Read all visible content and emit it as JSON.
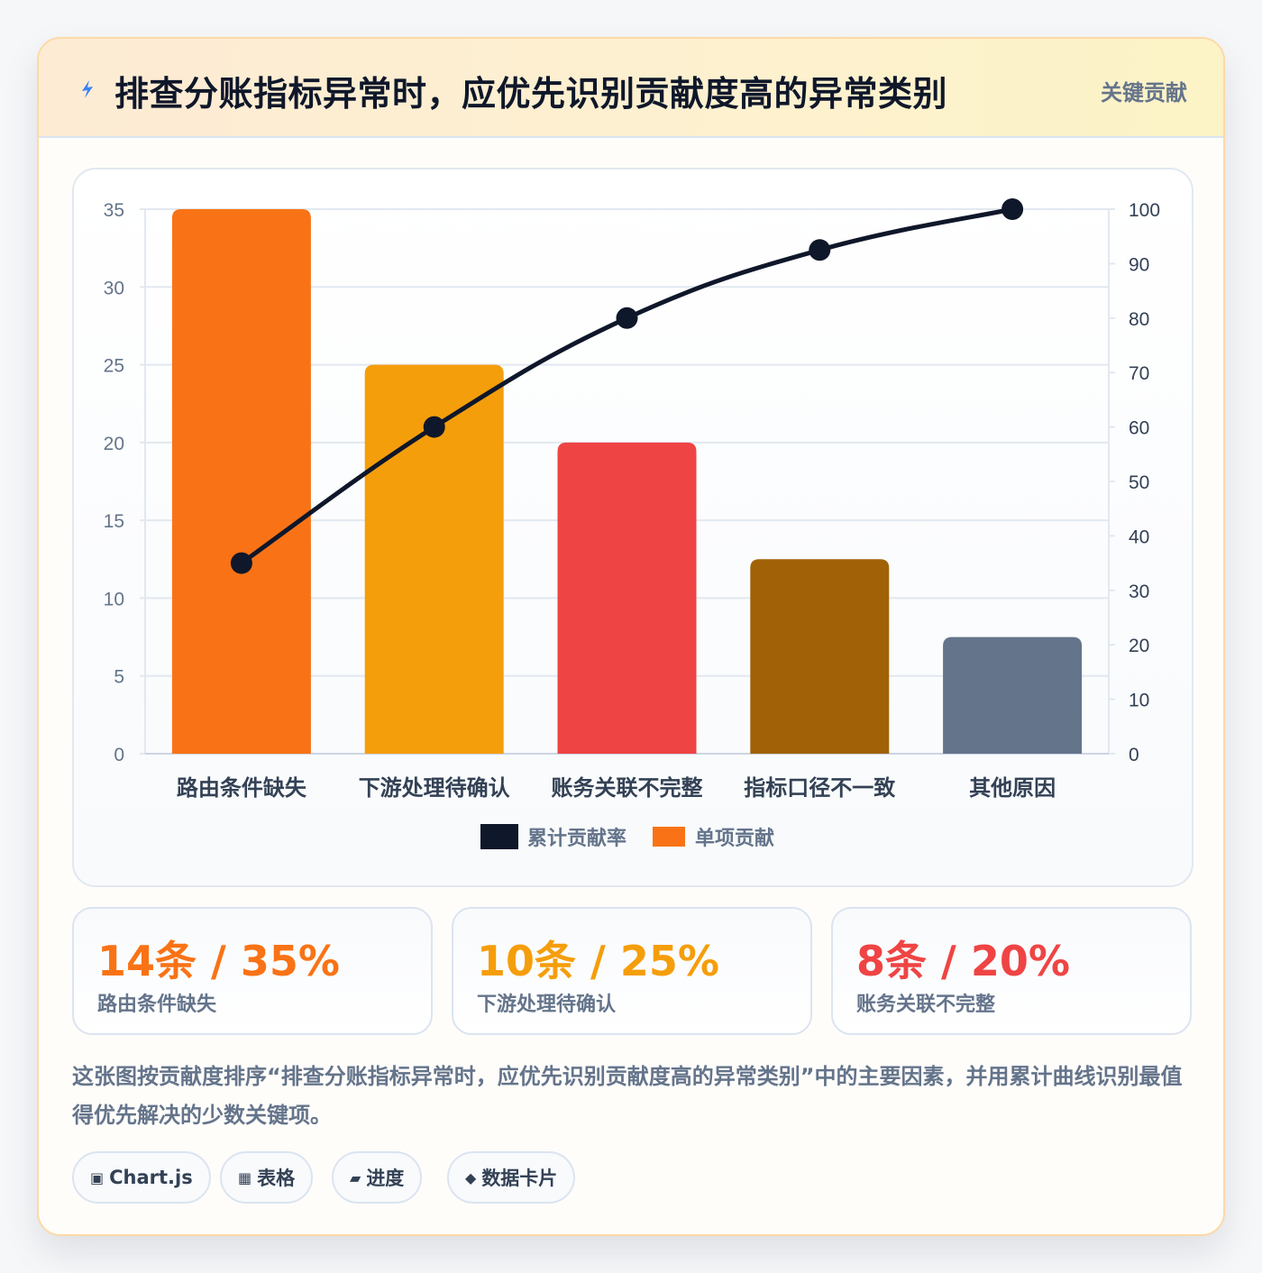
{
  "header": {
    "title": "排查分账指标异常时，应优先识别贡献度高的异常类别",
    "badge": "关键贡献",
    "icon": "lightning-icon"
  },
  "colors": {
    "orange": "#f97316",
    "amber": "#f59e0b",
    "red": "#ef4444",
    "brown": "#a16207",
    "slate": "#64748b",
    "navy": "#0f172a"
  },
  "chart_data": {
    "type": "bar",
    "categories": [
      "路由条件缺失",
      "下游处理待确认",
      "账务关联不完整",
      "指标口径不一致",
      "其他原因"
    ],
    "series": [
      {
        "name": "单项贡献",
        "type": "bar",
        "axis": "left",
        "values": [
          35,
          25,
          20,
          12.5,
          7.5
        ]
      },
      {
        "name": "累计贡献率",
        "type": "line",
        "axis": "right",
        "values": [
          35,
          60,
          80,
          92.5,
          100
        ]
      }
    ],
    "bar_colors": [
      "#f97316",
      "#f59e0b",
      "#ef4444",
      "#a16207",
      "#64748b"
    ],
    "line_color": "#0f172a",
    "y_left": {
      "min": 0,
      "max": 35,
      "ticks": [
        0,
        5,
        10,
        15,
        20,
        25,
        30,
        35
      ]
    },
    "y_right": {
      "min": 0,
      "max": 100,
      "ticks": [
        0,
        10,
        20,
        30,
        40,
        50,
        60,
        70,
        80,
        90,
        100
      ]
    },
    "legend": [
      {
        "label": "累计贡献率",
        "color": "#0f172a"
      },
      {
        "label": "单项贡献",
        "color": "#f97316"
      }
    ],
    "legend_position": "bottom",
    "grid": true
  },
  "stats": [
    {
      "value": "14条 / 35%",
      "label": "路由条件缺失",
      "color": "#f97316"
    },
    {
      "value": "10条 / 25%",
      "label": "下游处理待确认",
      "color": "#f59e0b"
    },
    {
      "value": "8条 / 20%",
      "label": "账务关联不完整",
      "color": "#ef4444"
    }
  ],
  "description": "这张图按贡献度排序“排查分账指标异常时，应优先识别贡献度高的异常类别”中的主要因素，并用累计曲线识别最值得优先解决的少数关键项。",
  "tags": [
    {
      "icon": "▣",
      "label": "Chart.js"
    },
    {
      "icon": "▦",
      "label": "表格"
    },
    {
      "icon": "▰",
      "label": "进度"
    },
    {
      "icon": "◆",
      "label": "数据卡片"
    }
  ]
}
